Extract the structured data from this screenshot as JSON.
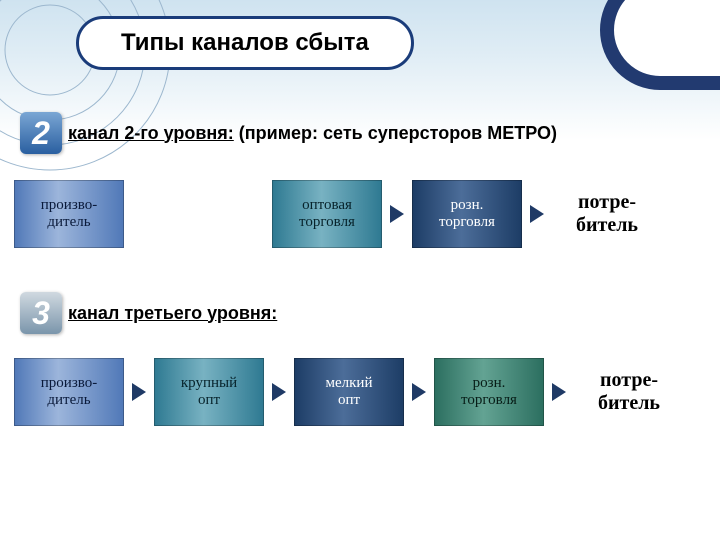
{
  "title": "Типы каналов сбыта",
  "level2": {
    "number": "2",
    "label_underlined": "канал 2-го уровня:",
    "label_rest": " (пример: сеть суперсторов МЕТРО)",
    "boxes": {
      "b1": "произво-\nдитель",
      "b2": "оптовая\nторговля",
      "b3": "розн.\nторговля",
      "b4": "потре-\nбитель"
    }
  },
  "level3": {
    "number": "3",
    "label_underlined": "канал третьего уровня:",
    "boxes": {
      "b1": "произво-\nдитель",
      "b2": "крупный\nопт",
      "b3": "мелкий\nопт",
      "b4": "розн.\nторговля",
      "b5": "потре-\nбитель"
    }
  },
  "colors": {
    "title_border": "#1a3c7a",
    "arrow": "#1f3a66",
    "box_blue": "#5179b8",
    "box_teal": "#2f7a92",
    "box_navy": "#1d3d66",
    "box_green": "#2c6f60",
    "bg_top": "#cfe3f0"
  }
}
